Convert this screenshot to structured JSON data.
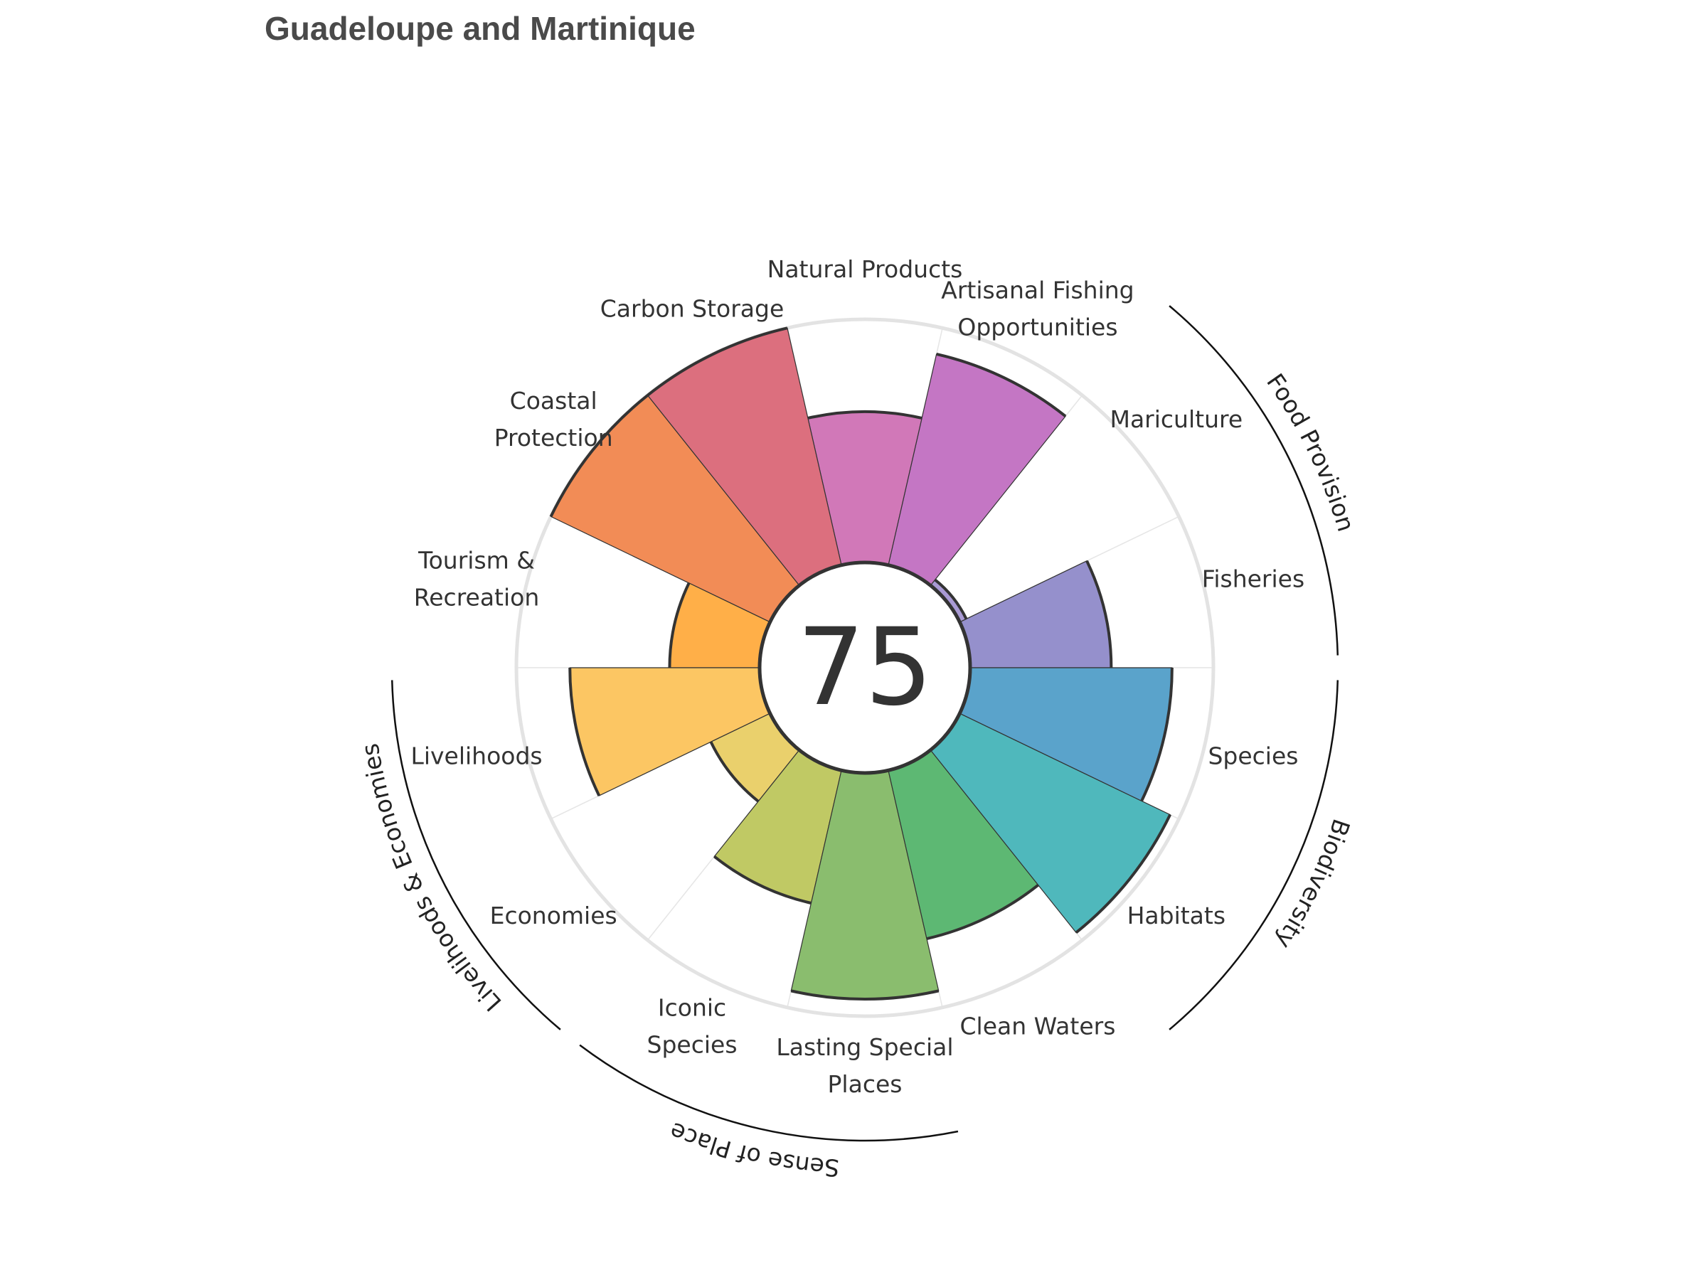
{
  "chart_data": {
    "type": "rose",
    "title": "Guadeloupe and Martinique",
    "center_score": "75",
    "ylim": [
      0,
      100
    ],
    "goals": [
      {
        "label": [
          "Fisheries"
        ],
        "value": 58,
        "color": "#9590cc"
      },
      {
        "label": [
          "Mariculture"
        ],
        "value": 3,
        "color": "#a99ad4"
      },
      {
        "label": [
          "Artisanal Fishing",
          "Opportunities"
        ],
        "value": 89,
        "color": "#c476c4"
      },
      {
        "label": [
          "Natural Products"
        ],
        "value": 62,
        "color": "#d178b8"
      },
      {
        "label": [
          "Carbon Storage"
        ],
        "value": 100,
        "color": "#dc6f7e"
      },
      {
        "label": [
          "Coastal",
          "Protection"
        ],
        "value": 100,
        "color": "#f28c56"
      },
      {
        "label": [
          "Tourism &",
          "Recreation"
        ],
        "value": 37,
        "color": "#ffaf48"
      },
      {
        "label": [
          "Livelihoods"
        ],
        "value": 78,
        "color": "#fcc663"
      },
      {
        "label": [
          "Economies"
        ],
        "value": 27,
        "color": "#ead06c"
      },
      {
        "label": [
          "Iconic",
          "Species"
        ],
        "value": 56,
        "color": "#c0c964"
      },
      {
        "label": [
          "Lasting Special",
          "Places"
        ],
        "value": 93,
        "color": "#8abd6e"
      },
      {
        "label": [
          "Clean Waters"
        ],
        "value": 71,
        "color": "#5db873"
      },
      {
        "label": [
          "Habitats"
        ],
        "value": 96,
        "color": "#4fb8bc"
      },
      {
        "label": [
          "Species"
        ],
        "value": 83,
        "color": "#5aa3cb"
      }
    ],
    "groups": [
      {
        "name": "Food Provision",
        "goals": [
          "Fisheries",
          "Mariculture"
        ]
      },
      {
        "name": "Biodiversity",
        "goals": [
          "Habitats",
          "Species"
        ]
      },
      {
        "name": "Sense of Place",
        "goals": [
          "Iconic Species",
          "Lasting Special Places"
        ]
      },
      {
        "name": "Livelihoods & Economies",
        "goals": [
          "Livelihoods",
          "Economies"
        ]
      }
    ]
  }
}
